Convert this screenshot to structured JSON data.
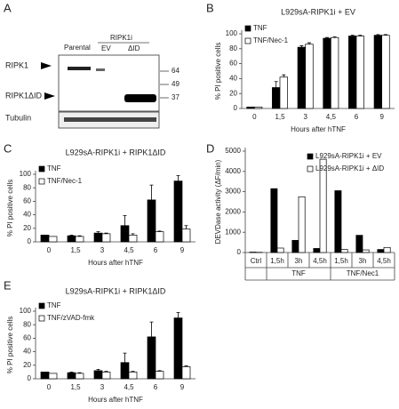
{
  "blot": {
    "label": "A",
    "lanes": [
      "Parental",
      "EV",
      "ΔID"
    ],
    "group": "RIPK1i",
    "bands": [
      "RIPK1",
      "RIPK1ΔID",
      "Tubulin"
    ],
    "markers": [
      "64",
      "49",
      "37"
    ]
  },
  "chart_data": [
    {
      "type": "bar",
      "label": "B",
      "title": "L929sA-RIPK1i + EV",
      "ylabel": "% PI positive cells",
      "xlabel": "Hours after hTNF",
      "categories": [
        "0",
        "1,5",
        "3",
        "4,5",
        "6",
        "9"
      ],
      "legend": "upper left",
      "series": [
        {
          "name": "TNF",
          "color": "#000000",
          "values": [
            2,
            28,
            82,
            94,
            97,
            98
          ],
          "errors": [
            0,
            8,
            2,
            1,
            1,
            1
          ]
        },
        {
          "name": "TNF/Nec-1",
          "color": "#ffffff",
          "values": [
            2,
            42,
            86,
            95,
            97,
            98
          ],
          "errors": [
            0,
            3,
            2,
            1,
            1,
            1
          ]
        }
      ],
      "ylim": [
        0,
        100
      ],
      "yticks": [
        0,
        20,
        40,
        60,
        80,
        100
      ]
    },
    {
      "type": "bar",
      "label": "C",
      "title": "L929sA-RIPK1i + RIPK1ΔID",
      "ylabel": "% PI positive cells",
      "xlabel": "Hours after hTNF",
      "categories": [
        "0",
        "1,5",
        "3",
        "4,5",
        "6",
        "9"
      ],
      "legend": "upper left",
      "series": [
        {
          "name": "TNF",
          "color": "#000000",
          "values": [
            10,
            9,
            13,
            24,
            62,
            90
          ],
          "errors": [
            0,
            1,
            2,
            15,
            22,
            8
          ]
        },
        {
          "name": "TNF/Nec-1",
          "color": "#ffffff",
          "values": [
            8,
            8,
            12,
            10,
            15,
            19
          ],
          "errors": [
            0,
            1,
            1,
            2,
            1,
            5
          ]
        }
      ],
      "ylim": [
        0,
        100
      ],
      "yticks": [
        0,
        20,
        40,
        60,
        80,
        100
      ]
    },
    {
      "type": "bar",
      "label": "D",
      "ylabel": "DEVDase activity (ΔF/min)",
      "categories": [
        "Ctrl",
        "1,5h",
        "3h",
        "4,5h",
        "1,5h",
        "3h",
        "4,5h"
      ],
      "group_labels": [
        "TNF",
        "TNF/Nec1"
      ],
      "legend": "upper right",
      "series": [
        {
          "name": "L929sA-RIPK1i + EV",
          "color": "#000000",
          "values": [
            20,
            3150,
            600,
            200,
            3050,
            850,
            150
          ]
        },
        {
          "name": "L929sA-RIPK1i + ΔID",
          "color": "#ffffff",
          "values": [
            10,
            220,
            2750,
            4600,
            150,
            130,
            250
          ]
        }
      ],
      "ylim": [
        0,
        5000
      ],
      "yticks": [
        0,
        1000,
        2000,
        3000,
        4000,
        5000
      ]
    },
    {
      "type": "bar",
      "label": "E",
      "title": "L929sA-RIPK1i + RIPK1ΔID",
      "ylabel": "% PI positive cells",
      "xlabel": "Hours after hTNF",
      "categories": [
        "0",
        "1,5",
        "3",
        "4,5",
        "6",
        "9"
      ],
      "legend": "upper left",
      "series": [
        {
          "name": "TNF",
          "color": "#000000",
          "values": [
            10,
            9,
            12,
            24,
            62,
            90
          ],
          "errors": [
            0,
            1,
            2,
            14,
            22,
            8
          ]
        },
        {
          "name": "TNF/zVAD-fmk",
          "color": "#ffffff",
          "values": [
            8,
            8,
            10,
            10,
            11,
            18
          ],
          "errors": [
            0,
            1,
            1,
            1,
            1,
            1
          ]
        }
      ],
      "ylim": [
        0,
        100
      ],
      "yticks": [
        0,
        20,
        40,
        60,
        80,
        100
      ]
    }
  ]
}
